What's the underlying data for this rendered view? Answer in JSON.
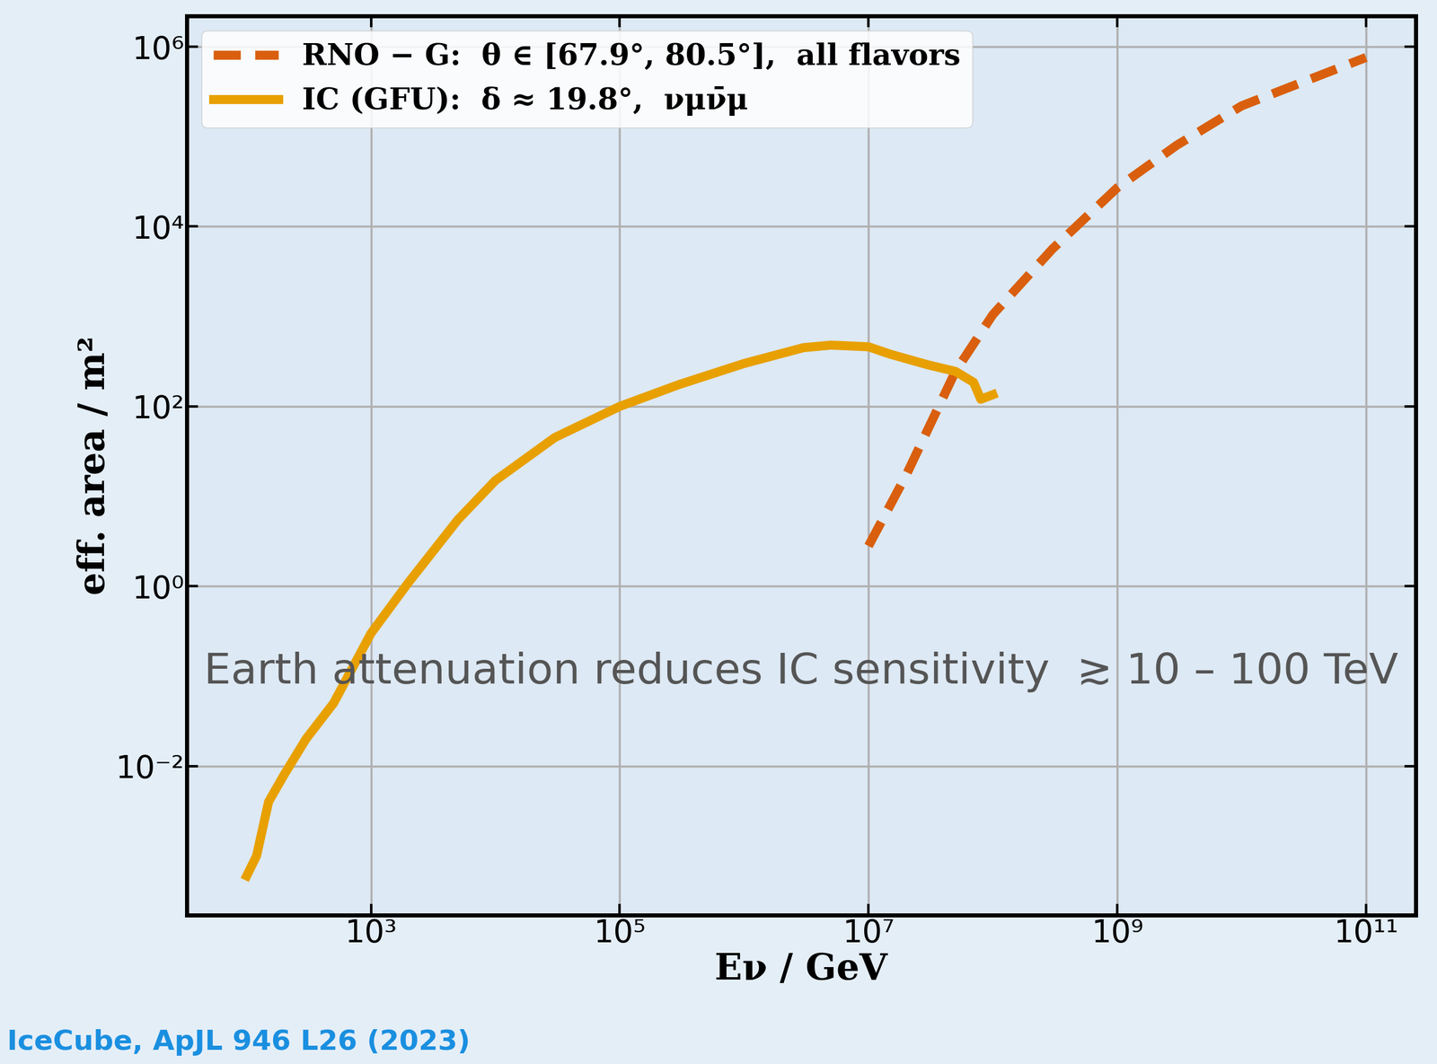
{
  "chart_data": {
    "type": "line",
    "x_label": "Eν / GeV",
    "y_label": "eff. area / m²",
    "log": true,
    "grid": true,
    "legend": "upper left",
    "xlim": [
      33,
      250000000000.0
    ],
    "ylim": [
      0.00022,
      2200000.0
    ],
    "xticks": [
      {
        "value": 1000,
        "label": "10³"
      },
      {
        "value": 100000,
        "label": "10⁵"
      },
      {
        "value": 10000000,
        "label": "10⁷"
      },
      {
        "value": 1000000000,
        "label": "10⁹"
      },
      {
        "value": 100000000000,
        "label": "10¹¹"
      }
    ],
    "yticks": [
      {
        "value": 0.01,
        "label": "10⁻²"
      },
      {
        "value": 1,
        "label": "10⁰"
      },
      {
        "value": 100,
        "label": "10²"
      },
      {
        "value": 10000,
        "label": "10⁴"
      },
      {
        "value": 1000000,
        "label": "10⁶"
      }
    ],
    "series": [
      {
        "name": "RNO − G:  θ ∈ [67.9°, 80.5°],  all flavors",
        "color": "#d95f0e",
        "line_style": "dashed",
        "x": [
          10000000.0,
          20000000.0,
          50000000.0,
          100000000.0,
          300000000.0,
          1000000000.0,
          3000000000.0,
          10000000000.0,
          100000000000.0
        ],
        "values": [
          2.8,
          17,
          245,
          1050,
          5600,
          27000,
          80000,
          220000,
          760000
        ]
      },
      {
        "name": "IC (GFU):  δ ≈ 19.8°,  νμν̄μ",
        "color": "#e8a000",
        "line_style": "solid",
        "x": [
          100,
          120,
          150,
          200,
          300,
          500,
          1000,
          2000,
          5000,
          10000,
          30000,
          100000,
          300000,
          1000000,
          3000000,
          5000000,
          10000000,
          15000000,
          30000000,
          50000000,
          70000000,
          80000000,
          100000000
        ],
        "values": [
          0.0006,
          0.001,
          0.004,
          0.008,
          0.02,
          0.05,
          0.3,
          1.1,
          5.5,
          15,
          45,
          100,
          175,
          300,
          450,
          480,
          460,
          380,
          290,
          245,
          185,
          120,
          135
        ]
      }
    ],
    "annotations": [
      "Earth attenuation reduces IC sensitivity  ≳ 10 – 100 TeV",
      "IceCube, ApJL 946 L26 (2023)"
    ]
  }
}
